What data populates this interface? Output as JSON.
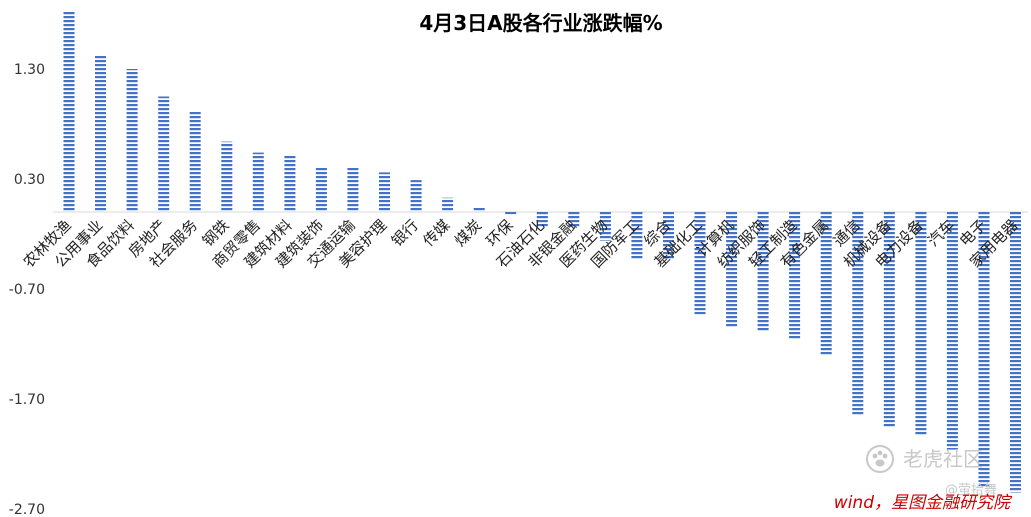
{
  "chart_data": {
    "type": "bar",
    "title": "4月3日A股各行业涨跌幅%",
    "xlabel": "",
    "ylabel": "",
    "ylim": [
      -2.7,
      1.8
    ],
    "yticks": [
      1.3,
      0.3,
      -0.7,
      -1.7,
      -2.7
    ],
    "ytick_labels": [
      "1.30",
      "0.30",
      "-0.70",
      "-1.70",
      "-2.70"
    ],
    "grid": false,
    "legend": "none",
    "bar_color": "#4472c4",
    "bar_pattern": "horizontal-stripes",
    "categories": [
      "农林牧渔",
      "公用事业",
      "食品饮料",
      "房地产",
      "社会服务",
      "钢铁",
      "商贸零售",
      "建筑材料",
      "建筑装饰",
      "交通运输",
      "美容护理",
      "银行",
      "传媒",
      "煤炭",
      "环保",
      "石油石化",
      "非银金融",
      "医药生物",
      "国防军工",
      "综合",
      "基础化工",
      "计算机",
      "纺织服饰",
      "轻工制造",
      "有色金属",
      "通信",
      "机械设备",
      "电力设备",
      "汽车",
      "电子",
      "家用电器"
    ],
    "values": [
      1.82,
      1.42,
      1.3,
      1.05,
      0.91,
      0.64,
      0.54,
      0.51,
      0.4,
      0.4,
      0.36,
      0.29,
      0.13,
      0.04,
      -0.02,
      -0.13,
      -0.13,
      -0.26,
      -0.43,
      -0.43,
      -0.93,
      -1.05,
      -1.08,
      -1.15,
      -1.3,
      -1.85,
      -1.95,
      -2.03,
      -2.16,
      -2.5,
      -2.55
    ]
  },
  "source_text": "wind，星图金融研究院",
  "watermark": {
    "brand_text": "老虎社区",
    "handle_text": "@萤拾舞",
    "brand_icon": "tiger-paw-icon"
  }
}
